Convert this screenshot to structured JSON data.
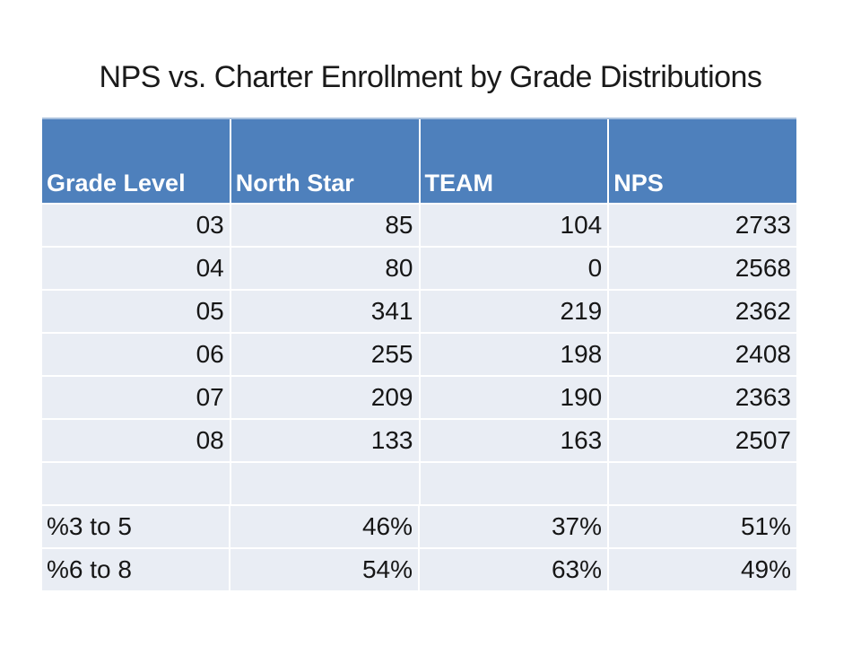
{
  "slide": {
    "title": "NPS vs. Charter Enrollment by Grade Distributions"
  },
  "colors": {
    "header_bg": "#4e80bc",
    "header_text": "#ffffff",
    "row_bg": "#e9edf4",
    "body_text": "#161616",
    "table_top_border": "#a8c0dd",
    "cell_separator": "#ffffff",
    "slide_bg": "#ffffff"
  },
  "chart_data": {
    "type": "table",
    "title": "NPS vs. Charter Enrollment by Grade Distributions",
    "columns": [
      "Grade Level",
      "North Star",
      "TEAM",
      "NPS"
    ],
    "rows": [
      [
        "03",
        "85",
        "104",
        "2733"
      ],
      [
        "04",
        "80",
        "0",
        "2568"
      ],
      [
        "05",
        "341",
        "219",
        "2362"
      ],
      [
        "06",
        "255",
        "198",
        "2408"
      ],
      [
        "07",
        "209",
        "190",
        "2363"
      ],
      [
        "08",
        "133",
        "163",
        "2507"
      ],
      [
        "",
        "",
        "",
        ""
      ],
      [
        "%3 to 5",
        "46%",
        "37%",
        "51%"
      ],
      [
        "%6 to 8",
        "54%",
        "63%",
        "49%"
      ]
    ],
    "categories": [
      "03",
      "04",
      "05",
      "06",
      "07",
      "08"
    ],
    "series": [
      {
        "name": "North Star",
        "values": [
          85,
          80,
          341,
          255,
          209,
          133
        ]
      },
      {
        "name": "TEAM",
        "values": [
          104,
          0,
          219,
          198,
          190,
          163
        ]
      },
      {
        "name": "NPS",
        "values": [
          2733,
          2568,
          2362,
          2408,
          2363,
          2507
        ]
      }
    ],
    "summary_rows": [
      {
        "label": "%3 to 5",
        "north_star": "46%",
        "team": "37%",
        "nps": "51%"
      },
      {
        "label": "%6 to 8",
        "north_star": "54%",
        "team": "63%",
        "nps": "49%"
      }
    ],
    "layout": {
      "header_position": "top",
      "grid": "white separators",
      "banding": false
    }
  }
}
